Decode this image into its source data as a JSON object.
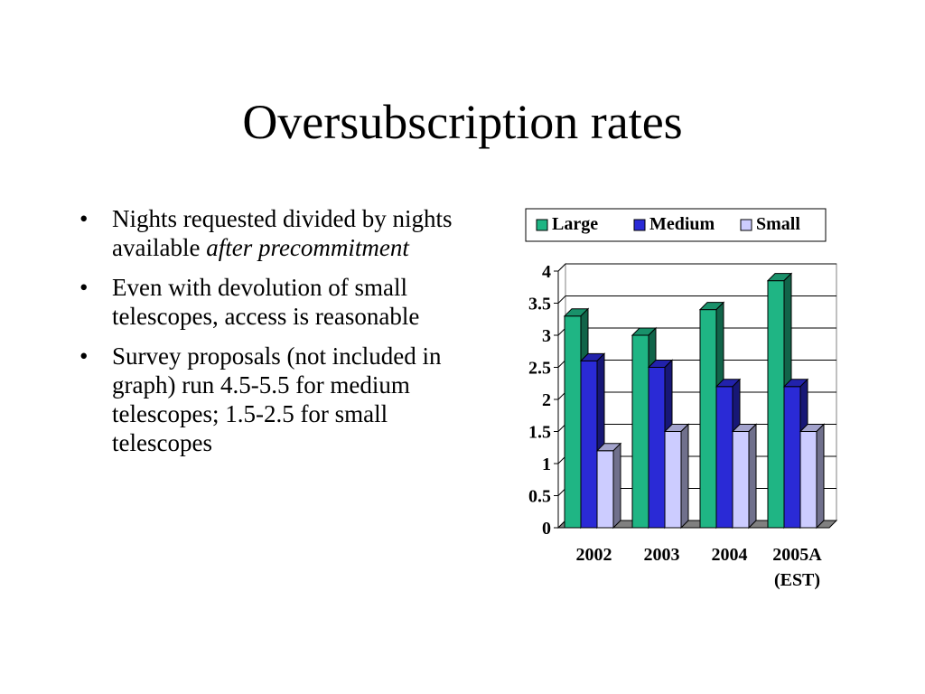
{
  "slide": {
    "title": "Oversubscription rates",
    "bullets": [
      {
        "text": "Nights requested divided by nights available ",
        "emphasis": "after precommitment"
      },
      {
        "text": "Even with devolution of small telescopes, access is reasonable",
        "emphasis": ""
      },
      {
        "text": "Survey proposals (not included in graph) run 4.5-5.5 for medium telescopes; 1.5-2.5 for small telescopes",
        "emphasis": ""
      }
    ]
  },
  "chart_data": {
    "type": "bar",
    "categories": [
      "2002",
      "2003",
      "2004",
      "2005A\n(EST)"
    ],
    "series": [
      {
        "name": "Large",
        "values": [
          3.3,
          3.0,
          3.4,
          3.85
        ],
        "color": "#1fb584"
      },
      {
        "name": "Medium",
        "values": [
          2.6,
          2.5,
          2.2,
          2.2
        ],
        "color": "#2a2ad6"
      },
      {
        "name": "Small",
        "values": [
          1.2,
          1.5,
          1.5,
          1.5
        ],
        "color": "#ccccff"
      }
    ],
    "ylim": [
      0,
      4
    ],
    "yticks": [
      "0",
      "0.5",
      "1",
      "1.5",
      "2",
      "2.5",
      "3",
      "3.5",
      "4"
    ],
    "grid": true,
    "legend": "top",
    "bar_style": "3d"
  }
}
